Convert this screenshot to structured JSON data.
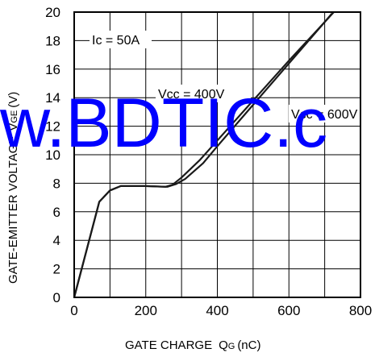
{
  "chart_data": {
    "type": "line",
    "xlabel": "GATE CHARGE",
    "xlabel_symbol": "Q",
    "xlabel_sub": "G",
    "xlabel_unit": "(nC)",
    "ylabel": "GATE-EMITTER VOLTAGE",
    "ylabel_symbol": "V",
    "ylabel_sub": "GE",
    "ylabel_unit": "(V)",
    "xlim": [
      0,
      800
    ],
    "ylim": [
      0,
      20
    ],
    "xticks": [
      0,
      200,
      400,
      600,
      800
    ],
    "yticks": [
      0,
      2,
      4,
      6,
      8,
      10,
      12,
      14,
      16,
      18,
      20
    ],
    "grid": true,
    "annotations": {
      "ic": "Ic = 50A",
      "vcc400": "Vcc = 400V",
      "vcc600": "Vcc = 600V"
    },
    "series": [
      {
        "name": "Vcc = 400V",
        "x": [
          0,
          70,
          100,
          130,
          200,
          255,
          275,
          300,
          350,
          400,
          500,
          600,
          700,
          740
        ],
        "y": [
          0,
          6.7,
          7.5,
          7.8,
          7.8,
          7.75,
          7.9,
          8.4,
          9.6,
          11.0,
          13.8,
          16.6,
          19.3,
          20.4
        ]
      },
      {
        "name": "Vcc = 600V",
        "x": [
          0,
          70,
          100,
          130,
          200,
          260,
          285,
          310,
          360,
          400,
          500,
          600,
          700,
          720
        ],
        "y": [
          0,
          6.7,
          7.5,
          7.8,
          7.8,
          7.75,
          7.95,
          8.3,
          9.4,
          10.6,
          13.5,
          16.4,
          19.3,
          19.9
        ]
      }
    ]
  },
  "watermark": "w.BDTIC.c",
  "colors": {
    "watermark": "#0000ff",
    "line": "#1a1a1a",
    "grid": "#000000"
  }
}
